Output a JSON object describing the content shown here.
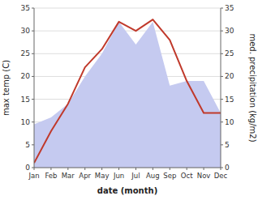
{
  "chart_data": {
    "type": "line",
    "categories": [
      "Jan",
      "Feb",
      "Mar",
      "Apr",
      "May",
      "Jun",
      "Jul",
      "Aug",
      "Sep",
      "Oct",
      "Nov",
      "Dec"
    ],
    "series": [
      {
        "type": "area",
        "color": "#c5caf0",
        "axis": "y2",
        "values": [
          9.5,
          11,
          14,
          20,
          25,
          32,
          27,
          32,
          18,
          19,
          19,
          12
        ]
      },
      {
        "type": "line",
        "color": "#c0392b",
        "values": [
          1,
          8,
          14,
          22,
          26,
          32,
          30,
          32.5,
          28,
          19,
          12,
          12
        ]
      }
    ],
    "xlabel": "date (month)",
    "ylabel": "max temp (C)",
    "y2label": "med. precipitation (kg/m2)",
    "ylim": [
      0,
      35
    ],
    "yticks": [
      0,
      5,
      10,
      15,
      20,
      25,
      30,
      35
    ],
    "y2lim": [
      0,
      35
    ],
    "y2ticks": [
      0,
      5,
      10,
      15,
      20,
      25,
      30,
      35
    ],
    "grid": true
  }
}
